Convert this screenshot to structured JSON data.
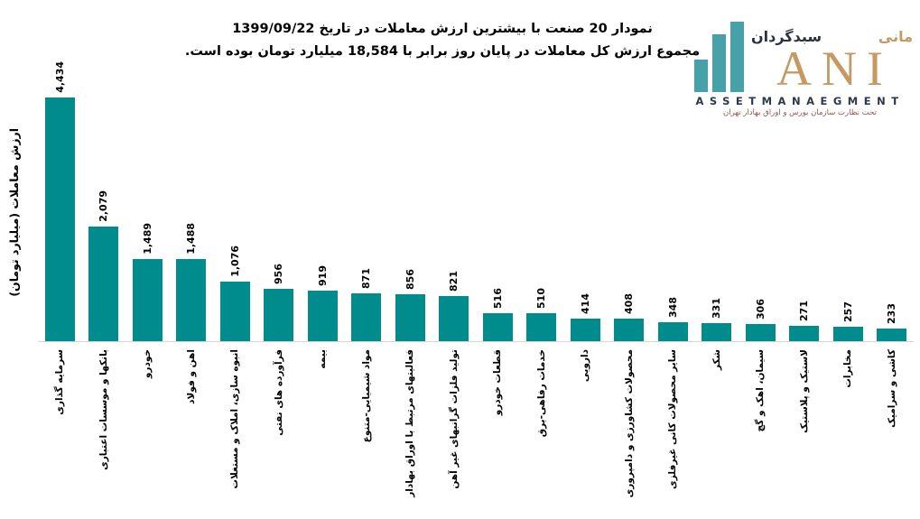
{
  "title": {
    "line1": "نمودار  20 صنعت با بیشترین ارزش معاملات در تاریخ 1399/09/22",
    "line2": "مجموع ارزش  کل معاملات در پایان روز برابر با 18,584 میلیارد تومان بوده است."
  },
  "logo": {
    "brand_fa_left": "سبدگردان",
    "brand_fa_right": "مانی",
    "brand_en": "ANI",
    "tagline_en": "ASSETMANAEGMENT",
    "tagline_fa": "تحت نظارت سازمان بورس و اوراق بهادار تهران",
    "colors": {
      "icon_teal": "#47A1A9",
      "gold": "#C49A62",
      "navy": "#2C3A47",
      "maroon": "#96564E"
    }
  },
  "chart_data": {
    "type": "bar",
    "title": "نمودار 20 صنعت با بیشترین ارزش معاملات در تاریخ 1399/09/22",
    "subtitle": "مجموع ارزش کل معاملات در پایان روز برابر با 18,584 میلیارد تومان بوده است.",
    "total_market_value": "18,584",
    "date": "1399/09/22",
    "xlabel": "",
    "ylabel": "ارزش معاملات (میلیارد تومان)",
    "ylim": [
      0,
      4434
    ],
    "grid": false,
    "legend": false,
    "bar_color": "#008B8C",
    "axis_line_color": "#D6D6D6",
    "categories": [
      "سرمایه گذاری",
      "بانکها و موسسات اعتباری",
      "خودرو",
      "اهن و فولاد",
      "انبوه سازی، املاک و مستغلات",
      "فرآورده های نفتی",
      "بیمه",
      "مواد شیمیایی-متنوع",
      "فعالیتهای مرتبط با اوراق بهادار",
      "تولید فلزات گرانبهای غیر آهن",
      "قطعات خودرو",
      "خدمات رفاهی-برق",
      "دارویی",
      "محصولات کشاورزی و دامپروری",
      "سایر محصولات کانی غیرفلزی",
      "شکر",
      "سیمان، اهک و گچ",
      "لاستیک و پلاستیک",
      "مخابرات",
      "کاشی و سرامیک"
    ],
    "values": [
      4434,
      2079,
      1489,
      1488,
      1076,
      956,
      919,
      871,
      856,
      821,
      516,
      510,
      414,
      408,
      348,
      331,
      306,
      271,
      257,
      233
    ],
    "value_labels": [
      "4,434",
      "2,079",
      "1,489",
      "1,488",
      "1,076",
      "956",
      "919",
      "871",
      "856",
      "821",
      "516",
      "510",
      "414",
      "408",
      "348",
      "331",
      "306",
      "271",
      "257",
      "233"
    ]
  }
}
